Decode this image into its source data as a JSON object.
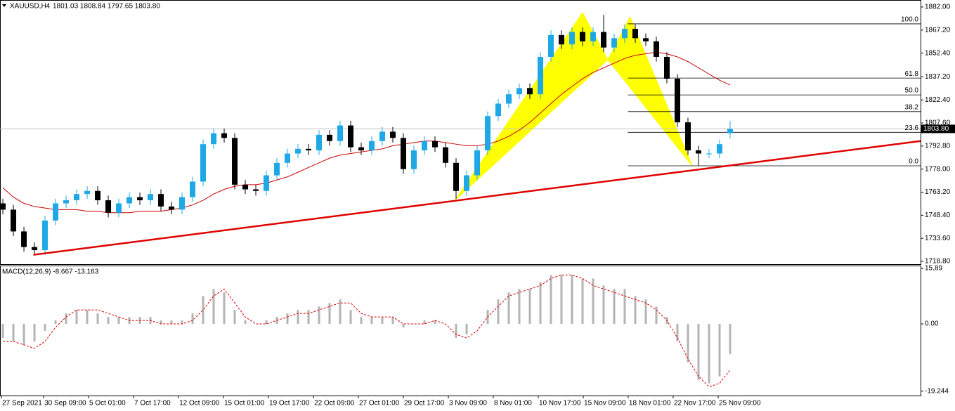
{
  "chart_data": {
    "type": "candlestick",
    "symbol_label": "XAUUSD,H4",
    "ohlc_label": "1801.03 1808.84 1797.65 1803.80",
    "xlim": [
      -0.27,
      87.07
    ],
    "xticks": [
      {
        "value": -0.13,
        "label": "27 Sep 2021"
      },
      {
        "value": 3.87,
        "label": "30 Sep 09:00"
      },
      {
        "value": 8.13,
        "label": "5 Oct 01:00"
      },
      {
        "value": 12.4,
        "label": "7 Oct 17:00"
      },
      {
        "value": 16.67,
        "label": "12 Oct 09:00"
      },
      {
        "value": 20.93,
        "label": "15 Oct 01:00"
      },
      {
        "value": 25.2,
        "label": "19 Oct 17:00"
      },
      {
        "value": 29.47,
        "label": "22 Oct 09:00"
      },
      {
        "value": 33.73,
        "label": "27 Oct 01:00"
      },
      {
        "value": 38,
        "label": "29 Oct 17:00"
      },
      {
        "value": 42.27,
        "label": "3 Nov 09:00"
      },
      {
        "value": 46.53,
        "label": "8 Nov 01:00"
      },
      {
        "value": 50.8,
        "label": "10 Nov 17:00"
      },
      {
        "value": 55.07,
        "label": "15 Nov 09:00"
      },
      {
        "value": 59.33,
        "label": "18 Nov 01:00"
      },
      {
        "value": 63.6,
        "label": "22 Nov 17:00"
      },
      {
        "value": 67.87,
        "label": "25 Nov 09:00"
      }
    ],
    "ylim": [
      1717.0,
      1886.5
    ],
    "yticks": [
      {
        "value": 1882,
        "label": "1882.00"
      },
      {
        "value": 1867.2,
        "label": "1867.20"
      },
      {
        "value": 1852.4,
        "label": "1852.40"
      },
      {
        "value": 1837.2,
        "label": "1837.20"
      },
      {
        "value": 1822.4,
        "label": "1822.40"
      },
      {
        "value": 1807.6,
        "label": "1807.60"
      },
      {
        "value": 1792.8,
        "label": "1792.80"
      },
      {
        "value": 1778,
        "label": "1778.00"
      },
      {
        "value": 1763.2,
        "label": "1763.20"
      },
      {
        "value": 1748.4,
        "label": "1748.40"
      },
      {
        "value": 1733.6,
        "label": "1733.60"
      },
      {
        "value": 1718.8,
        "label": "1718.80"
      }
    ],
    "up_color": "#1fa8e6",
    "down_color": "#000000",
    "open": [
      1756,
      1752,
      1738,
      1728,
      1726,
      1745,
      1756,
      1758,
      1762,
      1764,
      1758,
      1750,
      1756,
      1760,
      1758,
      1762,
      1754,
      1752,
      1760,
      1770,
      1794,
      1801,
      1798,
      1768,
      1765,
      1764,
      1774,
      1782,
      1788,
      1791,
      1790,
      1800,
      1796,
      1806,
      1792,
      1790,
      1796,
      1802,
      1798,
      1778,
      1790,
      1796,
      1792,
      1782,
      1764,
      1774,
      1790,
      1812,
      1820,
      1826,
      1830,
      1826,
      1850,
      1864,
      1858,
      1866,
      1860,
      1866,
      1856,
      1862,
      1868,
      1862,
      1860,
      1850,
      1836,
      1808,
      1790,
      1788,
      1788,
      1801.03
    ],
    "high": [
      1759,
      1755,
      1741,
      1731,
      1748,
      1759,
      1761,
      1765,
      1767,
      1767,
      1761,
      1759,
      1763,
      1763,
      1765,
      1765,
      1757,
      1763,
      1773,
      1797,
      1804,
      1804,
      1801,
      1771,
      1768,
      1777,
      1785,
      1791,
      1794,
      1794,
      1803,
      1803,
      1809,
      1809,
      1795,
      1799,
      1805,
      1805,
      1801,
      1793,
      1799,
      1799,
      1795,
      1785,
      1777,
      1793,
      1815,
      1823,
      1829,
      1833,
      1833,
      1853,
      1867,
      1867,
      1869,
      1869,
      1869,
      1877,
      1865,
      1871,
      1871,
      1865,
      1863,
      1853,
      1839,
      1811,
      1793,
      1791,
      1797,
      1808.84
    ],
    "low": [
      1749,
      1735,
      1725,
      1723,
      1723,
      1742,
      1753,
      1755,
      1759,
      1755,
      1747,
      1747,
      1753,
      1755,
      1755,
      1751,
      1749,
      1749,
      1757,
      1767,
      1791,
      1795,
      1765,
      1762,
      1761,
      1761,
      1771,
      1779,
      1785,
      1787,
      1787,
      1793,
      1793,
      1789,
      1787,
      1787,
      1793,
      1795,
      1775,
      1775,
      1787,
      1789,
      1779,
      1759,
      1761,
      1771,
      1787,
      1809,
      1817,
      1823,
      1823,
      1823,
      1847,
      1855,
      1855,
      1857,
      1857,
      1853,
      1853,
      1859,
      1859,
      1857,
      1847,
      1833,
      1805,
      1787,
      1780,
      1785,
      1785,
      1797.65
    ],
    "close": [
      1752,
      1738,
      1728,
      1726,
      1745,
      1756,
      1758,
      1762,
      1764,
      1758,
      1750,
      1756,
      1760,
      1758,
      1762,
      1754,
      1752,
      1760,
      1770,
      1794,
      1801,
      1798,
      1768,
      1765,
      1764,
      1774,
      1782,
      1788,
      1791,
      1790,
      1800,
      1796,
      1806,
      1792,
      1790,
      1796,
      1802,
      1798,
      1778,
      1790,
      1796,
      1792,
      1782,
      1764,
      1774,
      1790,
      1812,
      1820,
      1826,
      1830,
      1826,
      1850,
      1864,
      1858,
      1866,
      1860,
      1866,
      1856,
      1862,
      1868,
      1862,
      1860,
      1850,
      1836,
      1808,
      1790,
      1788,
      1788,
      1794,
      1803.8
    ],
    "ma": {
      "color": "#cc0000",
      "values": [
        1766,
        1760,
        1756,
        1754,
        1753,
        1752,
        1752,
        1752,
        1751,
        1751,
        1750,
        1750,
        1750,
        1751,
        1751,
        1751,
        1752,
        1753,
        1755,
        1758,
        1762,
        1765,
        1767,
        1768,
        1768,
        1769,
        1771,
        1773,
        1776,
        1779,
        1782,
        1785,
        1787,
        1788,
        1789,
        1790,
        1791,
        1793,
        1794,
        1795,
        1796,
        1796,
        1795,
        1794,
        1793,
        1793,
        1794,
        1796,
        1799,
        1803,
        1808,
        1814,
        1820,
        1826,
        1831,
        1836,
        1840,
        1843,
        1846,
        1849,
        1851,
        1852,
        1853,
        1852,
        1850,
        1847,
        1843,
        1839,
        1835,
        1832
      ]
    },
    "trendline": {
      "color": "#e00000",
      "x": [
        2.9,
        87.07
      ],
      "y": [
        1723,
        1796
      ]
    },
    "pattern": {
      "color": "#ffff00",
      "x": [
        42.9,
        55,
        57.4,
        59.5,
        65.4
      ],
      "y": [
        1758,
        1878.4,
        1848.2,
        1875.7,
        1780.1
      ]
    },
    "fibonacci": {
      "color": "#000000",
      "x_start": 59.3,
      "levels": [
        {
          "value": 1871.2,
          "label": "100.0"
        },
        {
          "value": 1836.4,
          "label": "61.8"
        },
        {
          "value": 1825.6,
          "label": "50.0"
        },
        {
          "value": 1814.9,
          "label": "38.2"
        },
        {
          "value": 1801.6,
          "label": "23.6"
        },
        {
          "value": 1780.1,
          "label": "0.0"
        }
      ]
    },
    "last_price": {
      "value": 1803.8,
      "label": "1803.80"
    },
    "macd": {
      "label": "MACD(12,26,9) -8.667 -13.163",
      "ylim": [
        -20.5,
        16.7
      ],
      "yticks": [
        15.89,
        {
          "value": 0,
          "label": "0.00"
        },
        -19.244
      ],
      "histogram": {
        "color": "#b4b4b4",
        "values": [
          -4,
          -5,
          -6,
          -5,
          -2,
          1,
          3,
          4,
          4,
          3,
          2,
          2,
          2,
          2,
          2,
          1,
          1,
          1,
          3,
          8,
          10,
          9,
          4,
          1,
          0,
          1,
          2,
          3,
          4,
          4,
          5,
          6,
          7,
          4,
          2,
          2,
          2,
          2,
          -1,
          0,
          1,
          1,
          0,
          -4,
          -3,
          0,
          4,
          7,
          9,
          10,
          10,
          12,
          14,
          14,
          14,
          13,
          13,
          11,
          10,
          10,
          8,
          7,
          5,
          2,
          -5,
          -11,
          -16,
          -17,
          -15,
          -8.667
        ]
      },
      "signal": {
        "color": "#dd0000",
        "values": [
          -5,
          -5,
          -6,
          -7,
          -5,
          -1,
          2,
          4,
          4,
          4,
          3,
          2,
          1,
          1,
          1,
          0,
          0,
          0,
          1,
          4,
          8,
          10,
          6,
          2,
          0,
          0,
          1,
          2,
          3,
          3,
          4,
          5,
          6,
          6,
          3,
          2,
          2,
          2,
          0,
          0,
          0,
          1,
          0,
          -3,
          -4,
          -2,
          2,
          5,
          8,
          9,
          10,
          11,
          13,
          14,
          14,
          13,
          11,
          10,
          9,
          8,
          7,
          6,
          4,
          1,
          -4,
          -10,
          -15,
          -18,
          -17,
          -13.163
        ]
      }
    }
  }
}
